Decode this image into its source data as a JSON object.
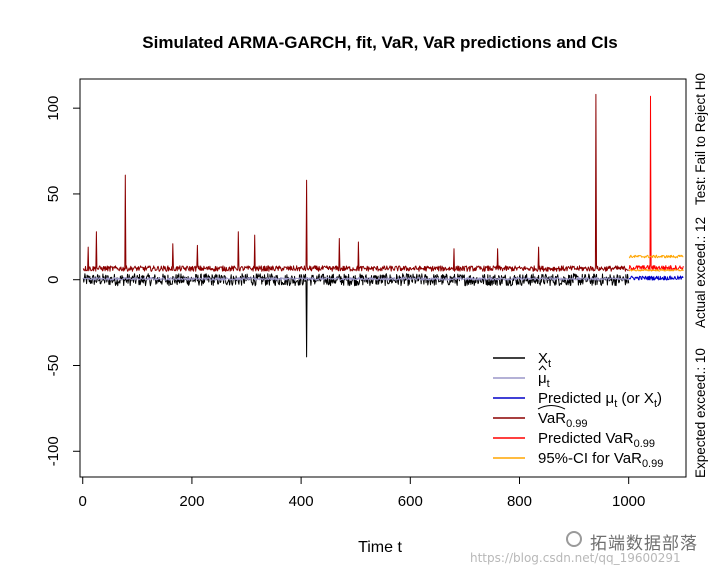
{
  "chart_data": {
    "type": "line",
    "title": "Simulated ARMA-GARCH, fit, VaR, VaR predictions and CIs",
    "xlabel": "Time t",
    "ylabel": "",
    "xlim": [
      -5,
      1105
    ],
    "ylim": [
      -115,
      117
    ],
    "xticks": [
      0,
      200,
      400,
      600,
      800,
      1000
    ],
    "yticks": [
      -100,
      -50,
      0,
      50,
      100
    ],
    "grid": false,
    "legend_position": "bottom-right",
    "right_margin_text": [
      "Expected exceed.: 10",
      "Actual exceed.: 12",
      "Test: Fail to Reject H0"
    ],
    "legend": [
      {
        "base": "X",
        "sub": "t",
        "hat": "none",
        "suffix": "",
        "color": "#000000"
      },
      {
        "base": "μ",
        "sub": "t",
        "hat": "small",
        "suffix": "",
        "color": "#9b97c9"
      },
      {
        "base": "Predicted μ",
        "sub": "t",
        "hat": "none",
        "suffix": " (or X",
        "suffix_sub": "t",
        "suffix_end": ")",
        "color": "#0000c8"
      },
      {
        "base": "VaR",
        "sub": "0.99",
        "hat": "wide",
        "suffix": "",
        "color": "#8b0000"
      },
      {
        "base": "Predicted VaR",
        "sub": "0.99",
        "hat": "none",
        "suffix": "",
        "color": "#ff0000"
      },
      {
        "base": "95%-CI for VaR",
        "sub": "0.99",
        "hat": "none",
        "suffix": "",
        "color": "#ffa500"
      }
    ],
    "series": [
      {
        "key": "xt",
        "color": "#000000",
        "n": 1000,
        "x_start": 1,
        "baseline": 0,
        "amp": 3.5,
        "spikes": [
          [
            410,
            -45
          ]
        ]
      },
      {
        "key": "mu_hat",
        "color": "#9b97c9",
        "n": 1000,
        "x_start": 1,
        "baseline": 0.5,
        "amp": 0.8,
        "spikes": []
      },
      {
        "key": "var_fit",
        "color": "#8b0000",
        "n": 1000,
        "x_start": 1,
        "baseline": 6.5,
        "amp": 1.6,
        "spikes": [
          [
            10,
            19
          ],
          [
            25,
            28
          ],
          [
            78,
            61
          ],
          [
            165,
            21
          ],
          [
            210,
            20
          ],
          [
            285,
            28
          ],
          [
            315,
            26
          ],
          [
            410,
            58
          ],
          [
            470,
            24
          ],
          [
            505,
            22
          ],
          [
            680,
            18
          ],
          [
            760,
            18
          ],
          [
            835,
            19
          ],
          [
            940,
            108
          ]
        ]
      },
      {
        "key": "pred_mu",
        "color": "#0000c8",
        "n": 100,
        "x_start": 1001,
        "baseline": 1,
        "amp": 1.2,
        "spikes": []
      },
      {
        "key": "pred_var",
        "color": "#ff0000",
        "n": 100,
        "x_start": 1001,
        "baseline": 7,
        "amp": 1.4,
        "spikes": [
          [
            1040,
            107
          ]
        ]
      },
      {
        "key": "ci_upper",
        "color": "#ffa500",
        "n": 100,
        "x_start": 1001,
        "baseline": 13.5,
        "amp": 0.8,
        "spikes": []
      },
      {
        "key": "ci_lower",
        "color": "#ffa500",
        "n": 100,
        "x_start": 1001,
        "baseline": 5.5,
        "amp": 0.5,
        "spikes": []
      }
    ]
  },
  "watermark": {
    "brand": "拓端数据部落",
    "url": "https://blog.csdn.net/qq_19600291"
  }
}
